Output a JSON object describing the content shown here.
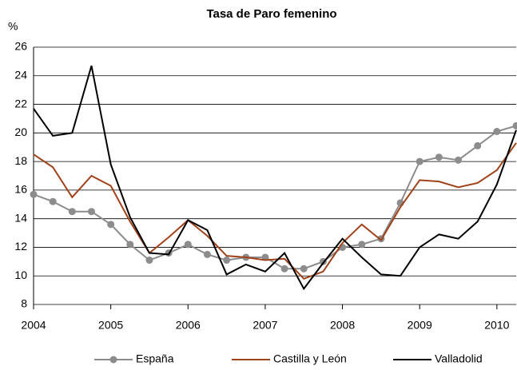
{
  "chart_data": {
    "type": "line",
    "title": "Tasa de Paro femenino",
    "y_label": "%",
    "x": [
      2004,
      2004.25,
      2004.5,
      2004.75,
      2005,
      2005.25,
      2005.5,
      2005.75,
      2006,
      2006.25,
      2006.5,
      2006.75,
      2007,
      2007.25,
      2007.5,
      2007.75,
      2008,
      2008.25,
      2008.5,
      2008.75,
      2009,
      2009.25,
      2009.5,
      2009.75,
      2010,
      2010.25
    ],
    "series": [
      {
        "name": "España",
        "color": "#8c8c8c",
        "marker": "circle",
        "values": [
          15.7,
          15.2,
          14.5,
          14.5,
          13.6,
          12.2,
          11.1,
          11.6,
          12.2,
          11.5,
          11.1,
          11.3,
          11.3,
          10.5,
          10.5,
          11.0,
          12.0,
          12.2,
          12.6,
          15.1,
          18.0,
          18.3,
          18.1,
          19.1,
          20.1,
          20.5
        ]
      },
      {
        "name": "Castilla y León",
        "color": "#a0421a",
        "values": [
          18.5,
          17.6,
          15.5,
          17.0,
          16.3,
          13.8,
          11.6,
          12.7,
          13.9,
          12.8,
          11.4,
          11.3,
          11.1,
          11.2,
          9.8,
          10.3,
          12.3,
          13.6,
          12.5,
          14.8,
          16.7,
          16.6,
          16.2,
          16.5,
          17.4,
          19.3
        ]
      },
      {
        "name": "Valladolid",
        "color": "#000000",
        "values": [
          21.7,
          19.8,
          20.0,
          24.7,
          17.8,
          14.1,
          11.6,
          11.5,
          13.9,
          13.2,
          10.1,
          10.8,
          10.3,
          11.6,
          9.1,
          10.9,
          12.6,
          11.3,
          10.1,
          10.0,
          12.0,
          12.9,
          12.6,
          13.8,
          16.4,
          20.2
        ]
      }
    ],
    "xlim": [
      2004,
      2010.25
    ],
    "xticks": [
      2004,
      2005,
      2006,
      2007,
      2008,
      2009,
      2010
    ],
    "ylim": [
      8,
      26
    ],
    "yticks": [
      8,
      10,
      12,
      14,
      16,
      18,
      20,
      22,
      24,
      26
    ],
    "grid": true,
    "legend": "bottom"
  }
}
